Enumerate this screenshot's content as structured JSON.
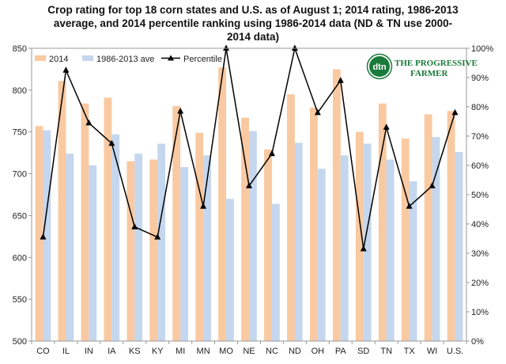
{
  "chart_data": {
    "type": "bar",
    "title_lines": [
      "Crop rating for top 18 corn states and U.S. as of August 1; 2014 rating, 1986-2013",
      "average, and 2014 percentile ranking  using 1986-2014 data  (ND & TN use 2000-",
      "2014 data)"
    ],
    "categories": [
      "CO",
      "IL",
      "IN",
      "IA",
      "KS",
      "KY",
      "MI",
      "MN",
      "MO",
      "NE",
      "NC",
      "ND",
      "OH",
      "PA",
      "SD",
      "TN",
      "TX",
      "WI",
      "U.S."
    ],
    "series": [
      {
        "name": "2014",
        "axis": "left",
        "color": "#f9c9a1",
        "values": [
          757,
          811,
          784,
          791,
          715,
          717,
          781,
          749,
          827,
          767,
          729,
          795,
          779,
          825,
          750,
          784,
          742,
          771,
          775
        ]
      },
      {
        "name": "1986-2013 ave",
        "axis": "left",
        "color": "#c5d7ee",
        "values": [
          752,
          724,
          710,
          747,
          724,
          736,
          708,
          722,
          670,
          751,
          664,
          737,
          706,
          722,
          736,
          717,
          691,
          744,
          726
        ]
      },
      {
        "name": "Percentile",
        "axis": "right",
        "type": "line",
        "color": "#000000",
        "values": [
          35.5,
          92.5,
          74.5,
          67.5,
          39,
          35.5,
          78.5,
          46,
          100,
          53,
          64,
          100,
          78,
          89,
          31.5,
          73,
          46,
          53,
          78
        ]
      }
    ],
    "y_left": {
      "min": 500,
      "max": 850,
      "step": 50
    },
    "y_right": {
      "min": 0,
      "max": 100,
      "step": 10,
      "unit": "%"
    },
    "legend_position": "top-left",
    "grid": false
  },
  "logo": {
    "badge": "dtn",
    "line1": "THE PROGRESSIVE",
    "line2": "FARMER"
  },
  "colors": {
    "bar2014": "#f9c9a1",
    "barAvg": "#c5d7ee",
    "line": "#000000",
    "logoGreen": "#1a7a3a"
  }
}
